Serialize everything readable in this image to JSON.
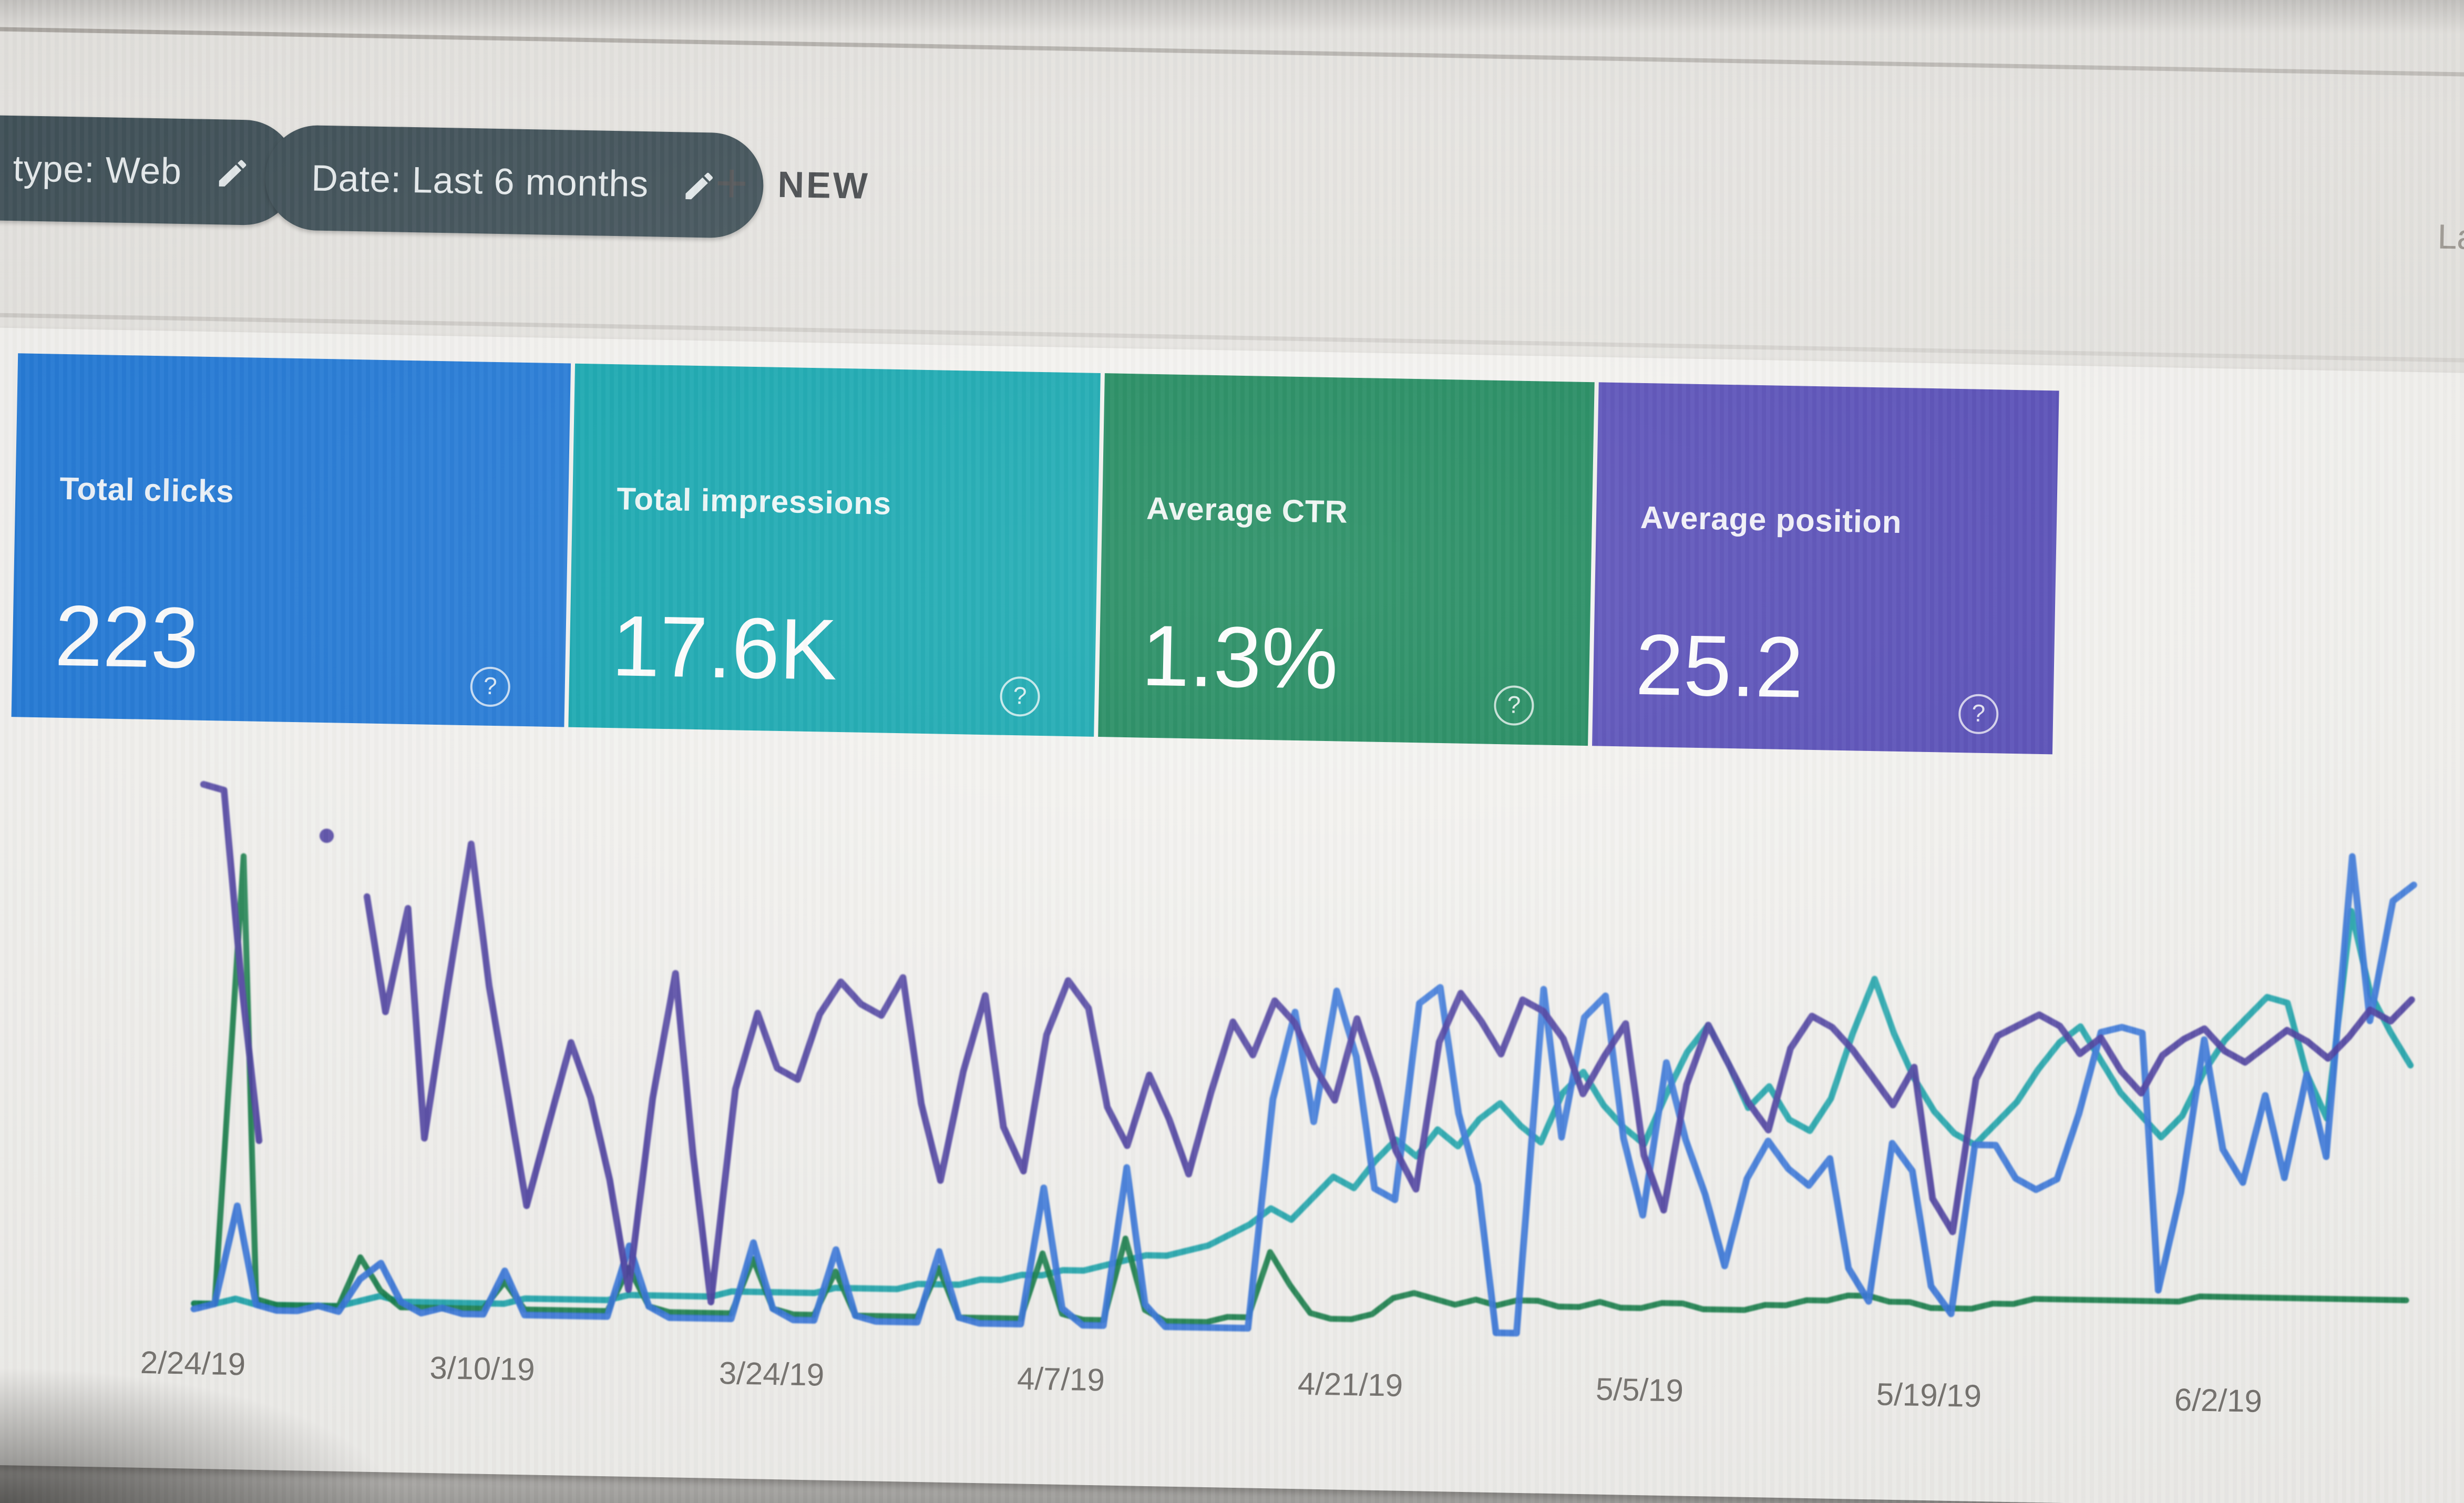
{
  "window": {
    "top_right_cut_text": "La"
  },
  "toolbar": {
    "search_type_chip": {
      "label": "type: Web",
      "icon": "pencil-edit"
    },
    "date_chip": {
      "label": "Date: Last 6 months",
      "icon": "pencil-edit"
    },
    "new_button": {
      "label": "NEW",
      "icon": "plus"
    }
  },
  "summary_cards": [
    {
      "id": "total-clicks",
      "label": "Total clicks",
      "value": "223",
      "color": "#1371d6",
      "help_icon": "?"
    },
    {
      "id": "total-impressions",
      "label": "Total impressions",
      "value": "17.6K",
      "color": "#03a2ab",
      "help_icon": "?"
    },
    {
      "id": "average-ctr",
      "label": "Average CTR",
      "value": "1.3%",
      "color": "#0b8050",
      "help_icon": "?"
    },
    {
      "id": "average-position",
      "label": "Average position",
      "value": "25.2",
      "color": "#4a3fb3",
      "help_icon": "?"
    }
  ],
  "chart_data": {
    "type": "line",
    "title": "",
    "xlabel": "",
    "ylabel": "",
    "grid": false,
    "legend": "none (line colors match summary card colors)",
    "x_tick_labels": [
      "2/24/19",
      "3/10/19",
      "3/24/19",
      "4/7/19",
      "4/21/19",
      "5/5/19",
      "5/19/19",
      "6/2/19"
    ],
    "x_tick_days": [
      0,
      14,
      28,
      42,
      56,
      70,
      84,
      98
    ],
    "total_days": 108,
    "y_axis_note": "no visible y axis; values estimated as percent of plot height (0-100)",
    "series": [
      {
        "name": "Clicks",
        "color": "#3173dd",
        "values": [
          0,
          1,
          19,
          1,
          0,
          0,
          1,
          0,
          6,
          9,
          2,
          0,
          1,
          0,
          0,
          8,
          0,
          0,
          0,
          0,
          0,
          13,
          2,
          0,
          0,
          0,
          0,
          14,
          2,
          0,
          0,
          13,
          1,
          0,
          0,
          0,
          13,
          1,
          0,
          0,
          0,
          25,
          3,
          0,
          0,
          29,
          4,
          0,
          0,
          0,
          0,
          0,
          42,
          58,
          38,
          62,
          50,
          26,
          24,
          60,
          63,
          40,
          27,
          0,
          0,
          63,
          36,
          58,
          62,
          36,
          22,
          50,
          36,
          26,
          13,
          29,
          36,
          31,
          28,
          33,
          13,
          7,
          36,
          31,
          10,
          5,
          36,
          36,
          30,
          28,
          30,
          42,
          57,
          58,
          57,
          10,
          28,
          56,
          36,
          30,
          46,
          31,
          50,
          35,
          90,
          60,
          82,
          85
        ]
      },
      {
        "name": "Impressions",
        "color": "#12a3aa",
        "values": [
          1,
          1,
          2,
          1,
          1,
          1,
          1,
          1,
          2,
          3,
          2,
          2,
          2,
          2,
          2,
          2,
          3,
          3,
          3,
          3,
          3,
          4,
          4,
          4,
          4,
          4,
          5,
          5,
          5,
          5,
          5,
          6,
          6,
          6,
          6,
          7,
          7,
          7,
          8,
          8,
          9,
          9,
          10,
          10,
          11,
          12,
          13,
          13,
          14,
          15,
          17,
          19,
          22,
          20,
          24,
          28,
          26,
          31,
          35,
          32,
          37,
          34,
          39,
          42,
          38,
          35,
          44,
          48,
          42,
          38,
          35,
          44,
          52,
          57,
          50,
          42,
          46,
          40,
          38,
          44,
          56,
          66,
          56,
          48,
          42,
          38,
          36,
          40,
          44,
          50,
          55,
          58,
          52,
          46,
          42,
          38,
          42,
          50,
          56,
          60,
          64,
          63,
          50,
          42,
          80,
          65,
          58,
          52
        ]
      },
      {
        "name": "CTR",
        "color": "#0f7c45",
        "values": [
          1,
          1,
          83,
          2,
          1,
          1,
          1,
          1,
          10,
          4,
          1,
          1,
          1,
          1,
          1,
          6,
          1,
          1,
          1,
          1,
          1,
          9,
          2,
          1,
          1,
          1,
          1,
          11,
          2,
          1,
          1,
          9,
          1,
          1,
          1,
          1,
          10,
          1,
          1,
          1,
          1,
          13,
          2,
          1,
          1,
          16,
          3,
          1,
          1,
          1,
          2,
          2,
          14,
          8,
          3,
          2,
          2,
          3,
          6,
          7,
          6,
          5,
          6,
          5,
          6,
          6,
          5,
          5,
          6,
          5,
          5,
          6,
          6,
          5,
          5,
          5,
          6,
          6,
          7,
          7,
          8,
          8,
          7,
          7,
          6,
          6,
          6,
          7,
          7,
          8,
          8,
          8,
          8,
          8,
          8,
          8,
          8,
          9,
          9,
          9,
          9,
          9,
          9,
          9,
          9,
          9,
          9,
          9
        ]
      },
      {
        "name": "Average position",
        "color": "#47399f",
        "note": "has missing-data gaps near start and one isolated point (day 6)",
        "values": [
          96,
          95,
          60,
          31,
          null,
          null,
          87,
          null,
          76,
          55,
          74,
          32,
          60,
          86,
          60,
          40,
          20,
          35,
          50,
          40,
          25,
          5,
          40,
          63,
          30,
          3,
          42,
          56,
          46,
          44,
          56,
          62,
          58,
          56,
          63,
          40,
          26,
          46,
          60,
          36,
          28,
          53,
          63,
          58,
          40,
          33,
          46,
          38,
          28,
          43,
          56,
          50,
          60,
          56,
          48,
          42,
          57,
          46,
          33,
          26,
          53,
          62,
          57,
          51,
          61,
          59,
          54,
          44,
          51,
          57,
          33,
          23,
          46,
          57,
          50,
          43,
          38,
          53,
          59,
          57,
          53,
          48,
          43,
          50,
          26,
          20,
          48,
          56,
          58,
          60,
          58,
          53,
          56,
          50,
          46,
          53,
          56,
          58,
          54,
          52,
          55,
          58,
          56,
          53,
          57,
          62,
          60,
          64
        ]
      }
    ]
  }
}
